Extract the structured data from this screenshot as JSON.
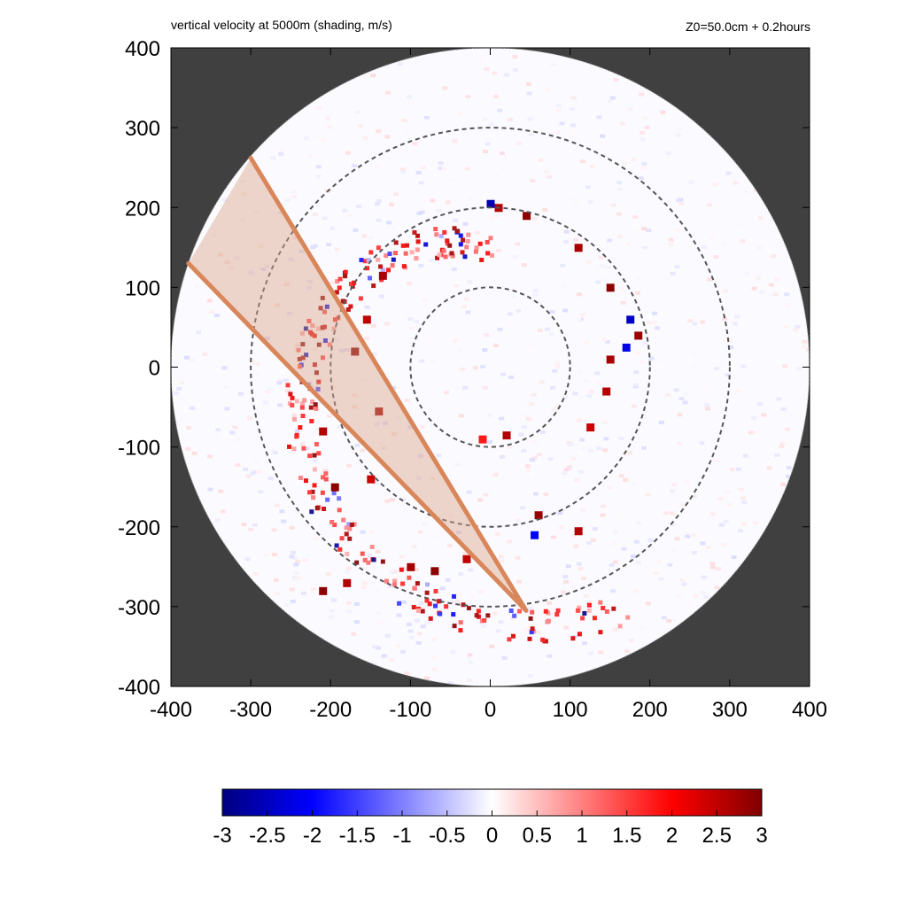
{
  "header": {
    "left_title": "vertical velocity at 5000m (shading, m/s)",
    "right_title": "Z0=50.0cm  + 0.2hours"
  },
  "chart_data": {
    "type": "heatmap",
    "title": "vertical velocity at 5000m (shading, m/s)",
    "subtitle": "Z0=50.0cm  + 0.2hours",
    "xlabel": "",
    "ylabel": "",
    "xlim": [
      -400,
      400
    ],
    "ylim": [
      -400,
      400
    ],
    "x_ticks": [
      -400,
      -300,
      -200,
      -100,
      0,
      100,
      200,
      300,
      400
    ],
    "y_ticks": [
      -400,
      -300,
      -200,
      -100,
      0,
      100,
      200,
      300,
      400
    ],
    "x_tick_labels": [
      "-400",
      "-300",
      "-200",
      "-100",
      "0",
      "100",
      "200",
      "300",
      "400"
    ],
    "y_tick_labels": [
      "400",
      "300",
      "200",
      "100",
      "0",
      "-100",
      "-200",
      "-300",
      "-400"
    ],
    "domain_radius": 400,
    "range_rings": [
      100,
      200,
      300
    ],
    "colorbar": {
      "min": -3,
      "max": 3,
      "ticks": [
        -3,
        -2.5,
        -2,
        -1.5,
        -1,
        -0.5,
        0,
        0.5,
        1,
        1.5,
        2,
        2.5,
        3
      ],
      "tick_labels": [
        "-3",
        "-2.5",
        "-2",
        "-1.5",
        "-1",
        "-0.5",
        "0",
        "0.5",
        "1",
        "1.5",
        "2",
        "2.5",
        "3"
      ],
      "colors": [
        "#000080",
        "#0000ff",
        "#ffffff",
        "#ff0000",
        "#800000"
      ]
    },
    "colors": {
      "outside_domain": "#404040",
      "rings": "#555555",
      "sector_fill": "#d9a58a",
      "sector_edge": "#d8865a"
    },
    "sector": {
      "vertex": [
        45,
        -305
      ],
      "edge_a": [
        [
          45,
          -305
        ],
        [
          -300,
          262
        ]
      ],
      "edge_b": [
        [
          45,
          -305
        ],
        [
          -378,
          130
        ]
      ]
    },
    "spiral_band": {
      "description_free": true,
      "radius_start": 150,
      "radius_end": 345,
      "angle_start_deg": 90,
      "angle_end_deg": 300
    },
    "features": [
      {
        "x": 0,
        "y": 205,
        "value": -2.6
      },
      {
        "x": 45,
        "y": 190,
        "value": 2.9
      },
      {
        "x": 10,
        "y": 200,
        "value": 2.6
      },
      {
        "x": 110,
        "y": 150,
        "value": 2.7
      },
      {
        "x": 150,
        "y": 100,
        "value": 2.9
      },
      {
        "x": 175,
        "y": 60,
        "value": -2.5
      },
      {
        "x": 170,
        "y": 25,
        "value": -2.2
      },
      {
        "x": 185,
        "y": 40,
        "value": 2.8
      },
      {
        "x": 150,
        "y": 10,
        "value": 2.7
      },
      {
        "x": 145,
        "y": -30,
        "value": 2.6
      },
      {
        "x": 125,
        "y": -75,
        "value": 2.4
      },
      {
        "x": -170,
        "y": 20,
        "value": 2.9
      },
      {
        "x": -135,
        "y": 115,
        "value": 2.7
      },
      {
        "x": -155,
        "y": 60,
        "value": 2.5
      },
      {
        "x": -140,
        "y": -55,
        "value": 2.7
      },
      {
        "x": -210,
        "y": -80,
        "value": 2.6
      },
      {
        "x": -195,
        "y": -150,
        "value": 2.9
      },
      {
        "x": -150,
        "y": -140,
        "value": 2.4
      },
      {
        "x": 60,
        "y": -185,
        "value": 2.8
      },
      {
        "x": 110,
        "y": -205,
        "value": 2.6
      },
      {
        "x": 55,
        "y": -210,
        "value": -2.0
      },
      {
        "x": -100,
        "y": -250,
        "value": 2.7
      },
      {
        "x": -70,
        "y": -255,
        "value": 2.9
      },
      {
        "x": -30,
        "y": -240,
        "value": 2.5
      },
      {
        "x": -180,
        "y": -270,
        "value": 2.6
      },
      {
        "x": -210,
        "y": -280,
        "value": 2.9
      },
      {
        "x": 20,
        "y": -85,
        "value": 2.6
      },
      {
        "x": -10,
        "y": -90,
        "value": 1.8
      }
    ]
  }
}
